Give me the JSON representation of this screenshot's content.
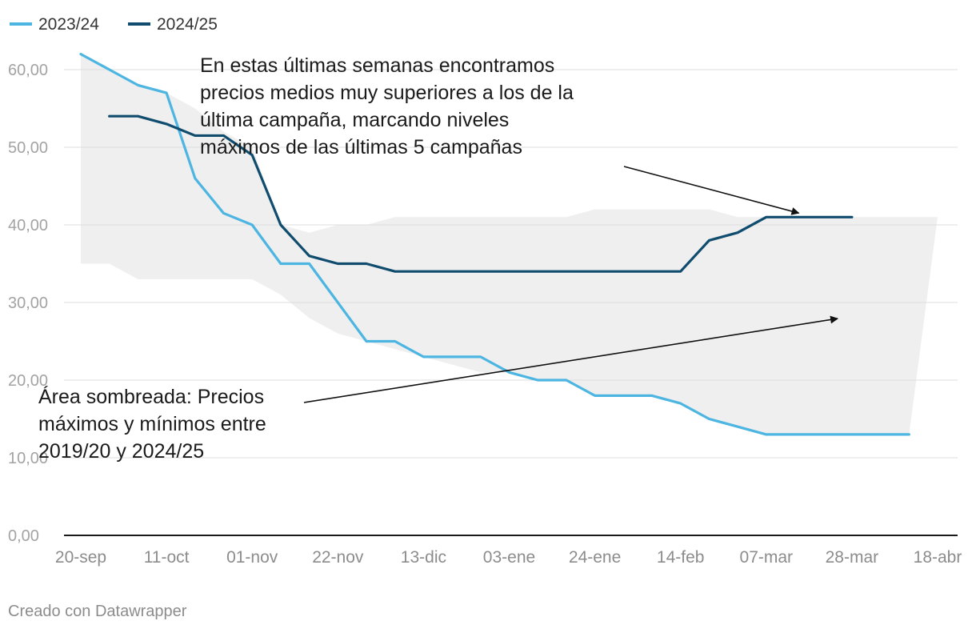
{
  "chart_data": {
    "type": "line",
    "x_ticks": [
      "20-sep",
      "11-oct",
      "01-nov",
      "22-nov",
      "13-dic",
      "03-ene",
      "24-ene",
      "14-feb",
      "07-mar",
      "28-mar",
      "18-abr"
    ],
    "x_unit": "weeks since 20-sep",
    "ylim": [
      0,
      65
    ],
    "y_ticks": [
      "0,00",
      "10,00",
      "20,00",
      "30,00",
      "40,00",
      "50,00",
      "60,00"
    ],
    "y_tick_values": [
      0,
      10,
      20,
      30,
      40,
      50,
      60
    ],
    "grid": true,
    "legend_position": "top-left",
    "series": [
      {
        "name": "2023/24",
        "color": "#4cb5e1",
        "points": [
          [
            0,
            62
          ],
          [
            1,
            60
          ],
          [
            2,
            58
          ],
          [
            3,
            57
          ],
          [
            4,
            46
          ],
          [
            5,
            41.5
          ],
          [
            6,
            40
          ],
          [
            7,
            35
          ],
          [
            8,
            35
          ],
          [
            9,
            30
          ],
          [
            10,
            25
          ],
          [
            11,
            25
          ],
          [
            12,
            23
          ],
          [
            13,
            23
          ],
          [
            14,
            23
          ],
          [
            15,
            21
          ],
          [
            16,
            20
          ],
          [
            17,
            20
          ],
          [
            18,
            18
          ],
          [
            19,
            18
          ],
          [
            20,
            18
          ],
          [
            21,
            17
          ],
          [
            22,
            15
          ],
          [
            23,
            14
          ],
          [
            24,
            13
          ],
          [
            25,
            13
          ],
          [
            26,
            13
          ],
          [
            27,
            13
          ],
          [
            28,
            13
          ],
          [
            29,
            13
          ]
        ]
      },
      {
        "name": "2024/25",
        "color": "#0f4c6e",
        "points": [
          [
            1,
            54
          ],
          [
            2,
            54
          ],
          [
            3,
            53
          ],
          [
            4,
            51.5
          ],
          [
            5,
            51.5
          ],
          [
            6,
            49
          ],
          [
            7,
            40
          ],
          [
            8,
            36
          ],
          [
            9,
            35
          ],
          [
            10,
            35
          ],
          [
            11,
            34
          ],
          [
            12,
            34
          ],
          [
            13,
            34
          ],
          [
            14,
            34
          ],
          [
            15,
            34
          ],
          [
            16,
            34
          ],
          [
            17,
            34
          ],
          [
            18,
            34
          ],
          [
            19,
            34
          ],
          [
            20,
            34
          ],
          [
            21,
            34
          ],
          [
            22,
            38
          ],
          [
            23,
            39
          ],
          [
            24,
            41
          ],
          [
            25,
            41
          ],
          [
            26,
            41
          ],
          [
            27,
            41
          ]
        ]
      }
    ],
    "band": {
      "color": "#efefef",
      "upper": [
        [
          0,
          62
        ],
        [
          1,
          60
        ],
        [
          2,
          58
        ],
        [
          3,
          57
        ],
        [
          4,
          55
        ],
        [
          5,
          52
        ],
        [
          6,
          50
        ],
        [
          7,
          40
        ],
        [
          8,
          39
        ],
        [
          9,
          40
        ],
        [
          10,
          40
        ],
        [
          11,
          41
        ],
        [
          12,
          41
        ],
        [
          13,
          41
        ],
        [
          14,
          41
        ],
        [
          15,
          41
        ],
        [
          16,
          41
        ],
        [
          17,
          41
        ],
        [
          18,
          42
        ],
        [
          19,
          42
        ],
        [
          20,
          42
        ],
        [
          21,
          42
        ],
        [
          22,
          42
        ],
        [
          23,
          41
        ],
        [
          24,
          41
        ],
        [
          25,
          41
        ],
        [
          26,
          41
        ],
        [
          27,
          41
        ],
        [
          28,
          41
        ],
        [
          29,
          41
        ],
        [
          30,
          41
        ]
      ],
      "lower": [
        [
          0,
          35
        ],
        [
          1,
          35
        ],
        [
          2,
          33
        ],
        [
          3,
          33
        ],
        [
          4,
          33
        ],
        [
          5,
          33
        ],
        [
          6,
          33
        ],
        [
          7,
          31
        ],
        [
          8,
          28
        ],
        [
          9,
          26
        ],
        [
          10,
          25
        ],
        [
          11,
          24
        ],
        [
          12,
          23
        ],
        [
          13,
          22
        ],
        [
          14,
          21
        ],
        [
          15,
          21
        ],
        [
          16,
          20
        ],
        [
          17,
          20
        ],
        [
          18,
          18
        ],
        [
          19,
          18
        ],
        [
          20,
          18
        ],
        [
          21,
          17
        ],
        [
          22,
          15
        ],
        [
          23,
          14
        ],
        [
          24,
          13
        ],
        [
          25,
          13
        ],
        [
          26,
          13
        ],
        [
          27,
          13
        ],
        [
          28,
          13
        ],
        [
          29,
          13
        ],
        [
          30,
          41
        ]
      ]
    },
    "annotations": [
      {
        "lines": [
          "En estas últimas semanas encontramos",
          "precios medios muy superiores a los de la",
          "última campaña, marcando niveles",
          "máximos de las últimas 5 campañas"
        ],
        "arrow_to": [
          25,
          41
        ]
      },
      {
        "lines": [
          "Área sombreada: Precios",
          "máximos y mínimos entre",
          "2019/20 y 2024/25"
        ],
        "arrow_to": [
          26.5,
          27
        ]
      }
    ]
  },
  "footer": {
    "credit": "Creado con Datawrapper"
  }
}
